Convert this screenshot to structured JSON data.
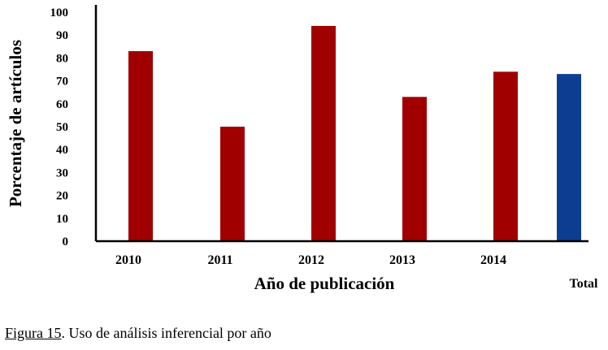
{
  "chart_data": {
    "type": "bar",
    "categories": [
      "2010",
      "2011",
      "2012",
      "2013",
      "2014",
      "Total"
    ],
    "values": [
      83,
      50,
      94,
      63,
      74,
      73
    ],
    "bar_colors": [
      "#a00000",
      "#a00000",
      "#a00000",
      "#a00000",
      "#a00000",
      "#0d3d91"
    ],
    "ylabel": "Porcentaje de artículos",
    "xlabel": "Año de publicación",
    "ylim": [
      0,
      100
    ],
    "yticks": [
      0,
      10,
      20,
      30,
      40,
      50,
      60,
      70,
      80,
      90,
      100
    ],
    "grid": false,
    "legend": "none"
  },
  "caption": {
    "figure_label": "Figura 15",
    "text": ". Uso de análisis inferencial por año"
  }
}
